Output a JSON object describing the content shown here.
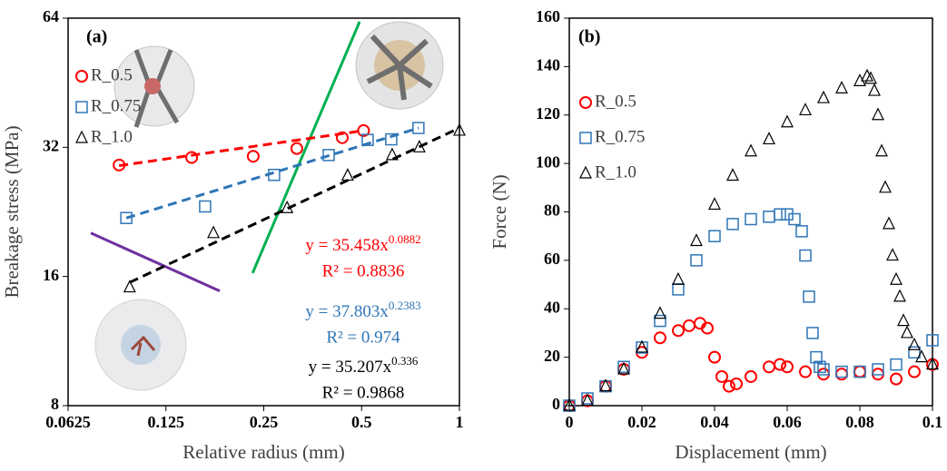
{
  "chart_data": [
    {
      "type": "scatter",
      "panel": "(a)",
      "x_label": "Relative radius (mm)",
      "y_label": "Breakage stress (MPa)",
      "log_x": true,
      "log_y": true,
      "base": 2,
      "xlim": [
        0.0625,
        1
      ],
      "xticks": [
        0.0625,
        0.125,
        0.25,
        0.5,
        1
      ],
      "ylim": [
        8,
        64
      ],
      "yticks": [
        8,
        16,
        32,
        64
      ],
      "series": [
        {
          "name": "R_0.5",
          "color": "#ff0000",
          "marker": "circle",
          "x": [
            0.0897,
            0.15,
            0.232,
            0.316,
            0.436,
            0.507
          ],
          "values": [
            29.1,
            30.3,
            30.5,
            31.8,
            33.7,
            35.0
          ],
          "trend_x": [
            0.0897,
            0.507
          ],
          "trend_y": [
            29.0,
            35.0
          ],
          "equation": "y = 35.458x",
          "exponent": "0.0882",
          "r2": "R² = 0.8836"
        },
        {
          "name": "R_0.75",
          "color": "#2e75b6",
          "marker": "square",
          "x": [
            0.0944,
            0.165,
            0.269,
            0.396,
            0.522,
            0.617,
            0.748
          ],
          "values": [
            21.9,
            23.3,
            27.6,
            30.7,
            33.3,
            33.4,
            35.5
          ],
          "trend_x": [
            0.0944,
            0.75
          ],
          "trend_y": [
            21.9,
            35.5
          ],
          "equation": "y = 37.803x",
          "exponent": "0.2383",
          "r2": "R² = 0.974"
        },
        {
          "name": "R_1.0",
          "color": "#000000",
          "marker": "triangle",
          "x": [
            0.0967,
            0.175,
            0.295,
            0.453,
            0.621,
            0.753,
            1.0
          ],
          "values": [
            15.1,
            20.2,
            23.1,
            27.5,
            30.7,
            32.0,
            35.0
          ],
          "trend_x": [
            0.0967,
            1.0
          ],
          "trend_y": [
            15.5,
            35.5
          ],
          "equation": "y = 35.207x",
          "exponent": "0.336",
          "r2": "R² = 0.9868"
        }
      ],
      "lines": [
        {
          "color": "#00b050",
          "x": [
            0.231,
            0.493
          ],
          "y": [
            16.3,
            62.8
          ]
        },
        {
          "color": "#7030a0",
          "x": [
            0.0734,
            0.183
          ],
          "y": [
            20.2,
            14.8
          ]
        }
      ]
    },
    {
      "type": "scatter",
      "panel": "(b)",
      "x_label": "Displacement (mm)",
      "y_label": "Force (N)",
      "log_x": false,
      "log_y": false,
      "xlim": [
        0,
        0.1
      ],
      "xticks": [
        0,
        0.02,
        0.04,
        0.06,
        0.08,
        0.1
      ],
      "ylim": [
        0,
        160
      ],
      "yticks": [
        0,
        20,
        40,
        60,
        80,
        100,
        120,
        140,
        160
      ],
      "series": [
        {
          "name": "R_0.5",
          "color": "#ff0000",
          "marker": "circle",
          "x": [
            0,
            0.005,
            0.01,
            0.015,
            0.02,
            0.025,
            0.03,
            0.033,
            0.036,
            0.038,
            0.04,
            0.042,
            0.044,
            0.046,
            0.05,
            0.055,
            0.058,
            0.06,
            0.065,
            0.07,
            0.075,
            0.08,
            0.085,
            0.09,
            0.095,
            0.1
          ],
          "values": [
            0,
            2,
            8,
            15,
            22,
            28,
            31,
            33,
            34,
            32,
            20,
            12,
            8,
            9,
            12,
            16,
            17,
            16,
            14,
            13,
            13,
            14,
            13,
            11,
            14,
            17
          ]
        },
        {
          "name": "R_0.75",
          "color": "#2e75b6",
          "marker": "square",
          "x": [
            0,
            0.005,
            0.01,
            0.015,
            0.02,
            0.025,
            0.03,
            0.035,
            0.04,
            0.045,
            0.05,
            0.055,
            0.058,
            0.06,
            0.062,
            0.064,
            0.065,
            0.066,
            0.067,
            0.068,
            0.069,
            0.07,
            0.075,
            0.08,
            0.085,
            0.09,
            0.095,
            0.1
          ],
          "values": [
            0,
            3,
            8,
            16,
            24,
            35,
            48,
            60,
            70,
            75,
            77,
            78,
            79,
            79,
            77,
            72,
            62,
            45,
            30,
            20,
            16,
            15,
            14,
            14,
            15,
            17,
            22,
            27
          ]
        },
        {
          "name": "R_1.0",
          "color": "#000000",
          "marker": "triangle",
          "x": [
            0,
            0.005,
            0.01,
            0.015,
            0.02,
            0.025,
            0.03,
            0.035,
            0.04,
            0.045,
            0.05,
            0.055,
            0.06,
            0.065,
            0.07,
            0.075,
            0.08,
            0.082,
            0.083,
            0.084,
            0.085,
            0.086,
            0.087,
            0.088,
            0.089,
            0.09,
            0.091,
            0.092,
            0.093,
            0.095,
            0.097,
            0.1
          ],
          "values": [
            0,
            2,
            8,
            15,
            24,
            38,
            52,
            68,
            83,
            95,
            105,
            110,
            117,
            122,
            127,
            131,
            134,
            136,
            135,
            130,
            120,
            105,
            90,
            75,
            62,
            52,
            45,
            35,
            30,
            25,
            20,
            17
          ]
        }
      ]
    }
  ]
}
